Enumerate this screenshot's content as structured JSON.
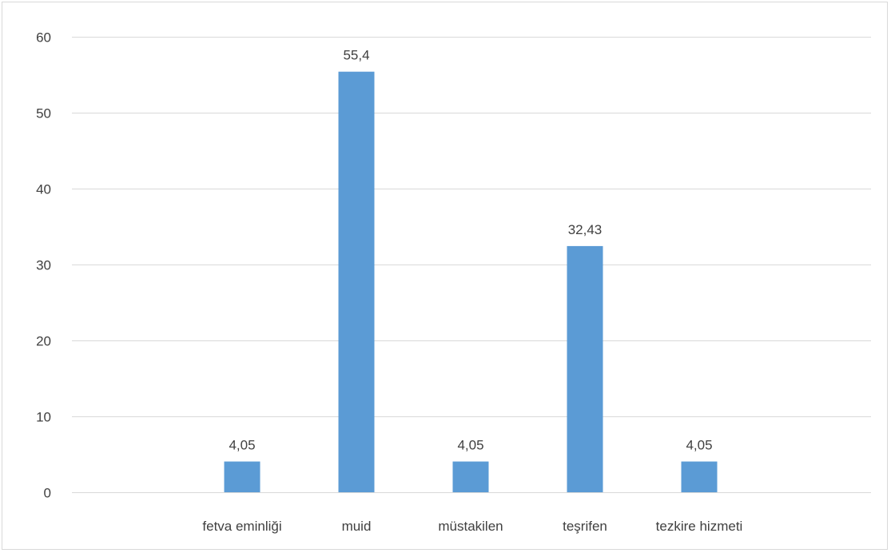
{
  "chart_data": {
    "type": "bar",
    "title": "",
    "xlabel": "",
    "ylabel": "",
    "categories": [
      "fetva eminliği",
      "muid",
      "müstakilen",
      "teşrifen",
      "tezkire hizmeti"
    ],
    "series": [
      {
        "values": [
          4.05,
          55.4,
          4.05,
          32.43,
          4.05
        ],
        "value_labels": [
          "4,05",
          "55,4",
          "4,05",
          "32,43",
          "4,05"
        ]
      }
    ],
    "ylim": [
      0,
      60
    ],
    "yticks": [
      0,
      10,
      20,
      30,
      40,
      50,
      60
    ],
    "ytick_labels": [
      "0",
      "10",
      "20",
      "30",
      "40",
      "50",
      "60"
    ],
    "grid": true,
    "legend": "none",
    "colors": {
      "bar": "#5b9bd5",
      "grid": "#d9d9d9",
      "text": "#404040"
    }
  }
}
